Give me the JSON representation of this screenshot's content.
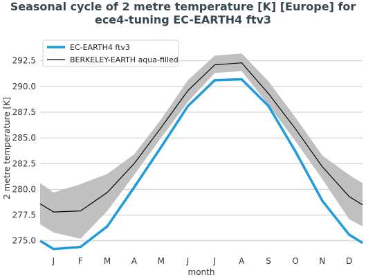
{
  "chart_data": {
    "type": "line",
    "title_line1": "Seasonal cycle of 2 metre temperature [K] [Europe] for",
    "title_line2": "ece4-tuning EC-EARTH4 ftv3",
    "xlabel": "month",
    "ylabel": "2 metre temperature [K]",
    "categories": [
      "J",
      "F",
      "M",
      "A",
      "M",
      "J",
      "J",
      "A",
      "S",
      "O",
      "N",
      "D"
    ],
    "ylim": [
      273.5,
      294.5
    ],
    "yticks": [
      275.0,
      277.5,
      280.0,
      282.5,
      285.0,
      287.5,
      290.0,
      292.5
    ],
    "ytick_labels": [
      "275.0",
      "277.5",
      "280.0",
      "282.5",
      "285.0",
      "287.5",
      "290.0",
      "292.5"
    ],
    "grid": true,
    "legend_position": "top-left",
    "series": [
      {
        "name": "EC-EARTH4 ftv3",
        "color": "#1e9bdc",
        "values": [
          274.2,
          274.4,
          276.4,
          280.2,
          284.1,
          288.1,
          290.6,
          290.7,
          288.1,
          283.7,
          278.9,
          275.6
        ]
      },
      {
        "name": "BERKELEY-EARTH aqua-filled",
        "color": "#000000",
        "values": [
          277.8,
          277.9,
          279.7,
          282.5,
          286.0,
          289.6,
          292.1,
          292.3,
          289.3,
          285.9,
          282.2,
          279.3
        ],
        "band_upper": [
          279.7,
          280.5,
          281.5,
          283.4,
          286.8,
          290.6,
          293.0,
          293.2,
          290.5,
          287.0,
          283.3,
          281.4
        ],
        "band_lower": [
          275.8,
          275.2,
          277.9,
          281.4,
          285.0,
          288.5,
          291.3,
          291.5,
          288.2,
          284.7,
          281.0,
          277.1
        ],
        "band_color": "#c0c0c0"
      }
    ],
    "edge_values": {
      "ec_earth_start": 275.0,
      "ec_earth_end": 274.8,
      "berkeley_start": 278.6,
      "berkeley_end": 278.5,
      "band_upper_start": 280.6,
      "band_upper_end": 280.6,
      "band_lower_start": 276.6,
      "band_lower_end": 276.4
    }
  }
}
